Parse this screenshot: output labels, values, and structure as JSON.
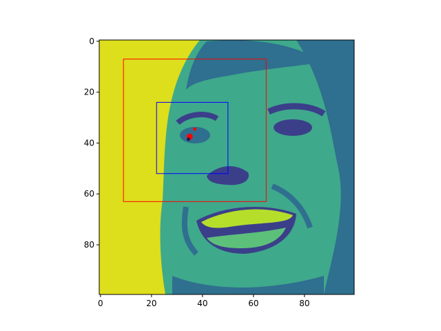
{
  "chart_data": {
    "type": "image",
    "title": "",
    "xlabel": "",
    "ylabel": "",
    "colormap": "viridis",
    "xlim": [
      -0.5,
      99.5
    ],
    "ylim": [
      99.5,
      -0.5
    ],
    "x_ticks": [
      0,
      20,
      40,
      60,
      80
    ],
    "y_ticks": [
      0,
      20,
      40,
      60,
      80
    ],
    "boxes": [
      {
        "name": "outer-box",
        "x0": 9,
        "y0": 7,
        "x1": 65,
        "y1": 63,
        "color": "#ff0000"
      },
      {
        "name": "inner-box",
        "x0": 22,
        "y0": 24,
        "x1": 50,
        "y1": 52,
        "color": "#0000ff"
      }
    ],
    "markers": [
      {
        "name": "red-dot-large",
        "x": 35,
        "y": 37.5,
        "color": "#ff0000",
        "size": 2.4
      },
      {
        "name": "red-dot-small",
        "x": 37,
        "y": 34.5,
        "color": "#ff0000",
        "size": 1.3
      },
      {
        "name": "dark-dot",
        "x": 34.5,
        "y": 38.5,
        "color": "#1a1a4a",
        "size": 1.3
      }
    ]
  },
  "colors": {
    "background": "#ddde1c",
    "face_mid": "#3fa98b",
    "face_dark": "#2f6f8f",
    "face_light": "#5cc07a",
    "shadow": "#3b3f8a",
    "teeth": "#b5de2b"
  }
}
